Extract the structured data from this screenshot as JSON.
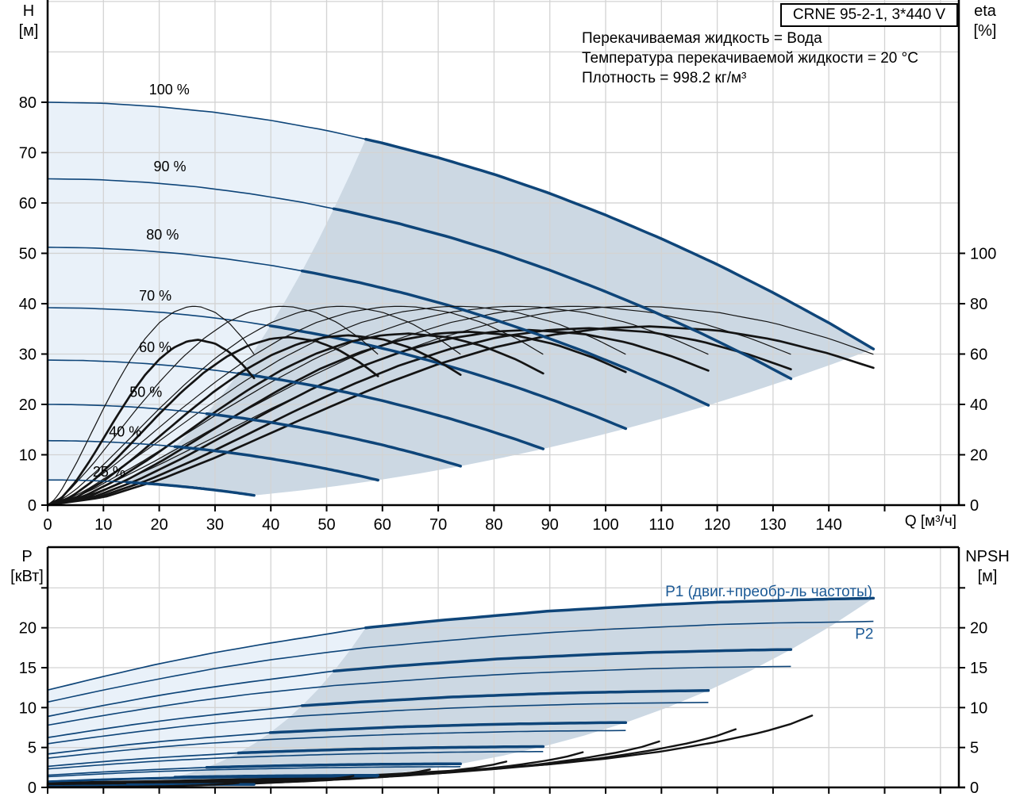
{
  "title_box": {
    "label": "CRNE 95-2-1, 3*440 V"
  },
  "info_lines": [
    "Перекачиваемая жидкость = Вода",
    "Температура перекачиваемой жидкости = 20 °C",
    "Плотность = 998.2 кг/м³"
  ],
  "axes": {
    "top": {
      "left_unit_line1": "H",
      "left_unit_line2": "[м]",
      "right_unit_line1": "eta",
      "right_unit_line2": "[%]",
      "x_unit": "Q [м³/ч]",
      "h_tick_labels": [
        0,
        10,
        20,
        30,
        40,
        50,
        60,
        70,
        80
      ],
      "h_gridlines": [
        10,
        20,
        30,
        40,
        50,
        60,
        70,
        80,
        90,
        100
      ],
      "eta_tick_labels": [
        0,
        20,
        40,
        60,
        80,
        100
      ],
      "q_tick_labels": [
        0,
        10,
        20,
        30,
        40,
        50,
        60,
        70,
        80,
        90,
        100,
        110,
        120,
        130,
        140
      ],
      "q_unlabeled_ticks": [
        150,
        160
      ]
    },
    "bottom": {
      "left_unit_line1": "P",
      "left_unit_line2": "[кВт]",
      "right_unit_line1": "NPSH",
      "right_unit_line2": "[м]",
      "p_tick_labels": [
        0,
        5,
        10,
        15,
        20
      ],
      "p_unlabeled_ticks": [
        25
      ],
      "npsh_tick_labels": [
        0,
        5,
        10,
        15,
        20
      ],
      "npsh_unlabeled_ticks": [
        25
      ],
      "p_gridlines": [
        5,
        10,
        15,
        20,
        25
      ],
      "q_ticks": [
        0,
        10,
        20,
        30,
        40,
        50,
        60,
        70,
        80,
        90,
        100,
        110,
        120,
        130,
        140,
        150,
        160
      ]
    }
  },
  "speed_labels": [
    {
      "label": "100 %",
      "q": 21.8,
      "h": 82.5
    },
    {
      "label": "90 %",
      "q": 21.9,
      "h": 67.2
    },
    {
      "label": "80 %",
      "q": 20.6,
      "h": 53.7
    },
    {
      "label": "70 %",
      "q": 19.3,
      "h": 41.6
    },
    {
      "label": "60 %",
      "q": 19.3,
      "h": 31.3
    },
    {
      "label": "50 %",
      "q": 17.6,
      "h": 22.4
    },
    {
      "label": "40 %",
      "q": 13.9,
      "h": 14.6
    },
    {
      "label": "25 %",
      "q": 11.0,
      "h": 6.6
    }
  ],
  "power_labels": [
    {
      "label": "P1 (двиг.+преобр-ль частоты)",
      "q": 147.8,
      "p": 24.55,
      "anchor": "end"
    },
    {
      "label": "P2",
      "q": 148.0,
      "p": 19.2,
      "anchor": "end"
    }
  ],
  "colors": {
    "navy": "#0e4579",
    "black_curve": "#141414",
    "fill_light": "#e9f1f9",
    "fill_dark": "#ccd8e3",
    "grid": "#d3d3d3",
    "axis": "#000000",
    "power_label_blue": "#1c5a96"
  },
  "chart_data": [
    {
      "type": "line",
      "title": "CRNE 95-2-1, 3*440 V",
      "xlabel": "Q [м³/ч]",
      "ylabel": "H [м]",
      "y2label": "eta [%]",
      "xlim": [
        0,
        163.3
      ],
      "ylim": [
        0,
        100.3
      ],
      "y2lim": [
        0,
        200.6
      ],
      "grid": true,
      "speeds_pct": [
        100,
        90,
        80,
        70,
        60,
        50,
        40,
        25
      ],
      "min_flow_q_at_full_speed": 57,
      "max_flow_q_at_full_speed": 148,
      "affinity": {
        "flow_exp": 1,
        "head_exp": 2,
        "eta_pump_exp": 0
      },
      "eta_total_speed_factor": {
        "base": 0.9,
        "slope": 0.1
      },
      "series": [
        {
          "name": "H vs Q at 100% speed",
          "axis": "left",
          "style": "navy, bold above min flow",
          "points": [
            [
              0,
              80
            ],
            [
              10,
              79.8
            ],
            [
              20,
              79.1
            ],
            [
              30,
              78
            ],
            [
              40,
              76.4
            ],
            [
              50,
              74.4
            ],
            [
              60,
              71.9
            ],
            [
              70,
              69
            ],
            [
              80,
              65.7
            ],
            [
              90,
              61.9
            ],
            [
              100,
              57.6
            ],
            [
              110,
              52.9
            ],
            [
              120,
              47.8
            ],
            [
              130,
              42.2
            ],
            [
              140,
              36.2
            ],
            [
              148,
              31
            ]
          ]
        },
        {
          "name": "eta pump at 100% speed",
          "axis": "right",
          "style": "thin black",
          "points": [
            [
              0,
              0
            ],
            [
              5,
              2.2
            ],
            [
              10,
              6.1
            ],
            [
              20,
              16
            ],
            [
              30,
              27.1
            ],
            [
              40,
              38.3
            ],
            [
              50,
              48.8
            ],
            [
              60,
              58.3
            ],
            [
              70,
              66.2
            ],
            [
              80,
              72.4
            ],
            [
              90,
              76.6
            ],
            [
              100,
              78.7
            ],
            [
              105,
              79
            ],
            [
              110,
              78.7
            ],
            [
              120,
              76.6
            ],
            [
              130,
              72.4
            ],
            [
              140,
              66.2
            ],
            [
              148,
              59.9
            ]
          ]
        },
        {
          "name": "eta pump+motor+converter at 100% speed",
          "axis": "right",
          "style": "bold black",
          "points": [
            [
              0,
              0
            ],
            [
              10,
              3.1
            ],
            [
              20,
              10
            ],
            [
              30,
              18.8
            ],
            [
              40,
              28.6
            ],
            [
              50,
              38.5
            ],
            [
              60,
              47.8
            ],
            [
              70,
              56
            ],
            [
              80,
              62.6
            ],
            [
              90,
              67.5
            ],
            [
              100,
              70.3
            ],
            [
              108,
              71
            ],
            [
              120,
              69.4
            ],
            [
              130,
              65.8
            ],
            [
              140,
              60.2
            ],
            [
              148,
              54.5
            ]
          ]
        }
      ]
    },
    {
      "type": "line",
      "xlabel": "Q [м³/ч]",
      "ylabel": "P [кВт]",
      "y2label": "NPSH [м]",
      "xlim": [
        0,
        163.3
      ],
      "ylim": [
        0,
        30.1
      ],
      "y2lim": [
        0,
        30.1
      ],
      "grid": true,
      "speeds_pct": [
        100,
        90,
        80,
        70,
        60,
        50,
        40,
        25
      ],
      "affinity": {
        "flow_exp": 1,
        "power_exp": 3,
        "npsh_exp": 2
      },
      "series": [
        {
          "name": "P1 motor+frequency converter input power at 100% speed",
          "axis": "left",
          "style": "navy, bold above min flow",
          "points": [
            [
              0,
              12.2
            ],
            [
              10,
              13.9
            ],
            [
              20,
              15.5
            ],
            [
              30,
              16.9
            ],
            [
              40,
              18.1
            ],
            [
              50,
              19.2
            ],
            [
              57,
              20
            ],
            [
              70,
              20.9
            ],
            [
              80,
              21.5
            ],
            [
              90,
              22.1
            ],
            [
              100,
              22.5
            ],
            [
              110,
              22.9
            ],
            [
              120,
              23.2
            ],
            [
              130,
              23.4
            ],
            [
              140,
              23.6
            ],
            [
              148,
              23.7
            ]
          ]
        },
        {
          "name": "P2 shaft power at 100% speed",
          "axis": "left",
          "style": "thin navy",
          "points": [
            [
              0,
              10.7
            ],
            [
              10,
              12.2
            ],
            [
              20,
              13.6
            ],
            [
              30,
              14.9
            ],
            [
              40,
              16
            ],
            [
              50,
              16.9
            ],
            [
              57,
              17.5
            ],
            [
              70,
              18.3
            ],
            [
              80,
              18.9
            ],
            [
              90,
              19.4
            ],
            [
              100,
              19.8
            ],
            [
              110,
              20.1
            ],
            [
              120,
              20.4
            ],
            [
              130,
              20.6
            ],
            [
              140,
              20.7
            ],
            [
              148,
              20.8
            ]
          ]
        },
        {
          "name": "NPSH at 100% speed",
          "axis": "right",
          "style": "black",
          "points": [
            [
              0,
              0.6
            ],
            [
              20,
              0.8
            ],
            [
              40,
              1.1
            ],
            [
              60,
              1.6
            ],
            [
              80,
              2.4
            ],
            [
              90,
              2.9
            ],
            [
              100,
              3.6
            ],
            [
              110,
              4.5
            ],
            [
              120,
              5.7
            ],
            [
              128,
              6.9
            ],
            [
              133,
              7.9
            ],
            [
              137,
              9
            ]
          ]
        }
      ]
    }
  ]
}
